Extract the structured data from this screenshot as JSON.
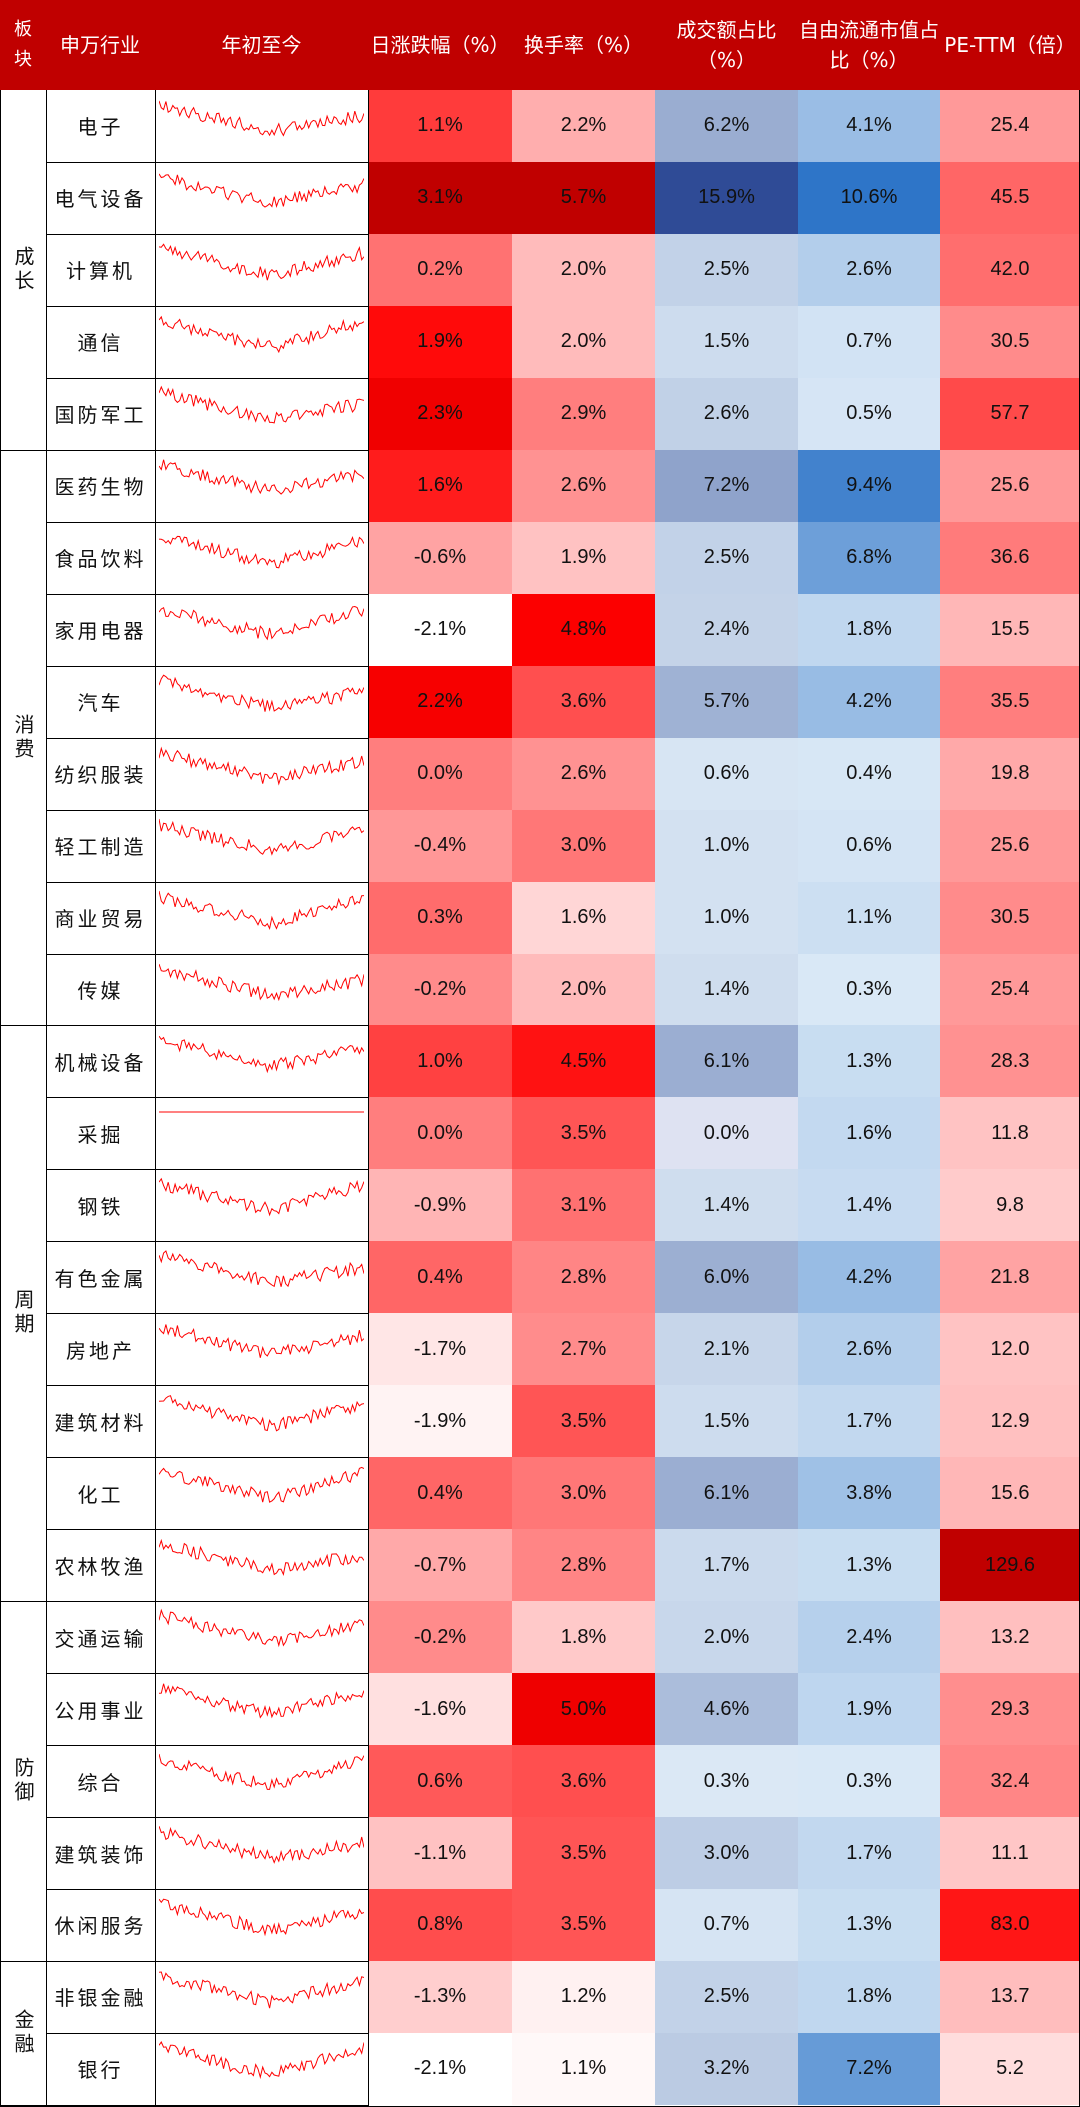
{
  "headers": {
    "sector": "板块",
    "industry": "申万行业",
    "ytd": "年初至今",
    "daily_change": "日涨跌幅（%）",
    "turnover": "换手率（%）",
    "volume_share": "成交额占比（%）",
    "float_mcap_share": "自由流通市值占比（%）",
    "pe_ttm": "PE-TTM（倍）"
  },
  "colors": {
    "header_bg": "#c00000",
    "positive_red": "#ff0000",
    "blue_scale": "#2e75c8",
    "line_red": "#ff0000"
  },
  "sectors": [
    {
      "name": "成长",
      "rows": [
        0,
        4
      ]
    },
    {
      "name": "消费",
      "rows": [
        5,
        12
      ]
    },
    {
      "name": "周期",
      "rows": [
        13,
        20
      ]
    },
    {
      "name": "防御",
      "rows": [
        21,
        25
      ]
    },
    {
      "name": "金融",
      "rows": [
        26,
        27
      ]
    }
  ],
  "rows": [
    {
      "industry": "电子",
      "daily": "1.1%",
      "turnover": "2.2%",
      "vol_share": "6.2%",
      "mcap_share": "4.1%",
      "pe": "25.4"
    },
    {
      "industry": "电气设备",
      "daily": "3.1%",
      "turnover": "5.7%",
      "vol_share": "15.9%",
      "mcap_share": "10.6%",
      "pe": "45.5"
    },
    {
      "industry": "计算机",
      "daily": "0.2%",
      "turnover": "2.0%",
      "vol_share": "2.5%",
      "mcap_share": "2.6%",
      "pe": "42.0"
    },
    {
      "industry": "通信",
      "daily": "1.9%",
      "turnover": "2.0%",
      "vol_share": "1.5%",
      "mcap_share": "0.7%",
      "pe": "30.5"
    },
    {
      "industry": "国防军工",
      "daily": "2.3%",
      "turnover": "2.9%",
      "vol_share": "2.6%",
      "mcap_share": "0.5%",
      "pe": "57.7"
    },
    {
      "industry": "医药生物",
      "daily": "1.6%",
      "turnover": "2.6%",
      "vol_share": "7.2%",
      "mcap_share": "9.4%",
      "pe": "25.6"
    },
    {
      "industry": "食品饮料",
      "daily": "-0.6%",
      "turnover": "1.9%",
      "vol_share": "2.5%",
      "mcap_share": "6.8%",
      "pe": "36.6"
    },
    {
      "industry": "家用电器",
      "daily": "-2.1%",
      "turnover": "4.8%",
      "vol_share": "2.4%",
      "mcap_share": "1.8%",
      "pe": "15.5"
    },
    {
      "industry": "汽车",
      "daily": "2.2%",
      "turnover": "3.6%",
      "vol_share": "5.7%",
      "mcap_share": "4.2%",
      "pe": "35.5"
    },
    {
      "industry": "纺织服装",
      "daily": "0.0%",
      "turnover": "2.6%",
      "vol_share": "0.6%",
      "mcap_share": "0.4%",
      "pe": "19.8"
    },
    {
      "industry": "轻工制造",
      "daily": "-0.4%",
      "turnover": "3.0%",
      "vol_share": "1.0%",
      "mcap_share": "0.6%",
      "pe": "25.6"
    },
    {
      "industry": "商业贸易",
      "daily": "0.3%",
      "turnover": "1.6%",
      "vol_share": "1.0%",
      "mcap_share": "1.1%",
      "pe": "30.5"
    },
    {
      "industry": "传媒",
      "daily": "-0.2%",
      "turnover": "2.0%",
      "vol_share": "1.4%",
      "mcap_share": "0.3%",
      "pe": "25.4"
    },
    {
      "industry": "机械设备",
      "daily": "1.0%",
      "turnover": "4.5%",
      "vol_share": "6.1%",
      "mcap_share": "1.3%",
      "pe": "28.3"
    },
    {
      "industry": "采掘",
      "daily": "0.0%",
      "turnover": "3.5%",
      "vol_share": "0.0%",
      "mcap_share": "1.6%",
      "pe": "11.8"
    },
    {
      "industry": "钢铁",
      "daily": "-0.9%",
      "turnover": "3.1%",
      "vol_share": "1.4%",
      "mcap_share": "1.4%",
      "pe": "9.8"
    },
    {
      "industry": "有色金属",
      "daily": "0.4%",
      "turnover": "2.8%",
      "vol_share": "6.0%",
      "mcap_share": "4.2%",
      "pe": "21.8"
    },
    {
      "industry": "房地产",
      "daily": "-1.7%",
      "turnover": "2.7%",
      "vol_share": "2.1%",
      "mcap_share": "2.6%",
      "pe": "12.0"
    },
    {
      "industry": "建筑材料",
      "daily": "-1.9%",
      "turnover": "3.5%",
      "vol_share": "1.5%",
      "mcap_share": "1.7%",
      "pe": "12.9"
    },
    {
      "industry": "化工",
      "daily": "0.4%",
      "turnover": "3.0%",
      "vol_share": "6.1%",
      "mcap_share": "3.8%",
      "pe": "15.6"
    },
    {
      "industry": "农林牧渔",
      "daily": "-0.7%",
      "turnover": "2.8%",
      "vol_share": "1.7%",
      "mcap_share": "1.3%",
      "pe": "129.6"
    },
    {
      "industry": "交通运输",
      "daily": "-0.2%",
      "turnover": "1.8%",
      "vol_share": "2.0%",
      "mcap_share": "2.4%",
      "pe": "13.2"
    },
    {
      "industry": "公用事业",
      "daily": "-1.6%",
      "turnover": "5.0%",
      "vol_share": "4.6%",
      "mcap_share": "1.9%",
      "pe": "29.3"
    },
    {
      "industry": "综合",
      "daily": "0.6%",
      "turnover": "3.6%",
      "vol_share": "0.3%",
      "mcap_share": "0.3%",
      "pe": "32.4"
    },
    {
      "industry": "建筑装饰",
      "daily": "-1.1%",
      "turnover": "3.5%",
      "vol_share": "3.0%",
      "mcap_share": "1.7%",
      "pe": "11.1"
    },
    {
      "industry": "休闲服务",
      "daily": "0.8%",
      "turnover": "3.5%",
      "vol_share": "0.7%",
      "mcap_share": "1.3%",
      "pe": "83.0"
    },
    {
      "industry": "非银金融",
      "daily": "-1.3%",
      "turnover": "1.2%",
      "vol_share": "2.5%",
      "mcap_share": "1.8%",
      "pe": "13.7"
    },
    {
      "industry": "银行",
      "daily": "-2.1%",
      "turnover": "1.1%",
      "vol_share": "3.2%",
      "mcap_share": "7.2%",
      "pe": "5.2"
    }
  ]
}
